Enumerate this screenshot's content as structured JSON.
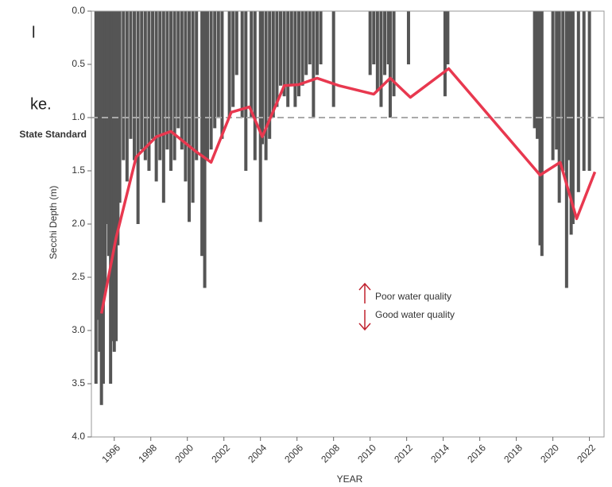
{
  "fragments": [
    "l",
    "ke."
  ],
  "chart_data": {
    "type": "bar",
    "y_axis_label": "Secchi Depth (m)",
    "x_axis_label": "YEAR",
    "y_inverted": true,
    "xlim": [
      1994.75,
      2022.8
    ],
    "ylim": [
      0,
      4
    ],
    "xticks": [
      1996,
      1998,
      2000,
      2002,
      2004,
      2006,
      2008,
      2010,
      2012,
      2014,
      2016,
      2018,
      2020,
      2022
    ],
    "yticks": [
      {
        "value": 0,
        "label": "0.0"
      },
      {
        "value": 0.5,
        "label": "0.5"
      },
      {
        "value": 1,
        "label": "1.0"
      },
      {
        "value": 1.5,
        "label": "1.5"
      },
      {
        "value": 2,
        "label": "2.0"
      },
      {
        "value": 2.5,
        "label": "2.5"
      },
      {
        "value": 3,
        "label": "3.0"
      },
      {
        "value": 3.5,
        "label": "3.5"
      },
      {
        "value": 4,
        "label": "4.0"
      }
    ],
    "color": "#555555",
    "x": [
      1995.0,
      1995.1,
      1995.2,
      1995.3,
      1995.4,
      1995.5,
      1995.6,
      1995.7,
      1995.8,
      1995.9,
      1996.0,
      1996.1,
      1996.2,
      1996.3,
      1996.5,
      1996.7,
      1996.9,
      1997.1,
      1997.3,
      1997.5,
      1997.7,
      1997.9,
      1998.1,
      1998.3,
      1998.5,
      1998.7,
      1998.9,
      1999.1,
      1999.3,
      1999.5,
      1999.7,
      1999.9,
      2000.1,
      2000.3,
      2000.5,
      2000.8,
      2000.95,
      2001.1,
      2001.3,
      2001.5,
      2001.7,
      2001.9,
      2002.3,
      2002.5,
      2002.7,
      2003.0,
      2003.2,
      2003.5,
      2003.7,
      2004.0,
      2004.1,
      2004.3,
      2004.5,
      2004.7,
      2004.9,
      2005.1,
      2005.3,
      2005.5,
      2005.7,
      2005.9,
      2006.1,
      2006.3,
      2006.5,
      2006.7,
      2006.9,
      2007.1,
      2007.3,
      2008.0,
      2010.0,
      2010.2,
      2010.4,
      2010.6,
      2010.8,
      2011.0,
      2011.1,
      2011.3,
      2012.1,
      2014.1,
      2014.25,
      2019.0,
      2019.15,
      2019.3,
      2019.4,
      2020.0,
      2020.2,
      2020.35,
      2020.55,
      2020.75,
      2020.9,
      2021.0,
      2021.1,
      2021.4,
      2021.7,
      2022.0
    ],
    "values": [
      3.5,
      2.9,
      3.2,
      3.7,
      3.5,
      2.6,
      2.0,
      2.3,
      3.5,
      3.1,
      3.2,
      3.1,
      2.2,
      1.8,
      1.4,
      1.6,
      1.2,
      1.4,
      2.0,
      1.3,
      1.4,
      1.5,
      1.2,
      1.6,
      1.4,
      1.8,
      1.3,
      1.5,
      1.4,
      1.1,
      1.3,
      1.6,
      1.98,
      1.8,
      1.4,
      2.3,
      2.6,
      1.4,
      1.3,
      1.1,
      1.0,
      1.2,
      1.0,
      0.9,
      0.6,
      1.0,
      1.5,
      1.0,
      1.4,
      1.98,
      1.25,
      1.4,
      1.2,
      1.0,
      0.9,
      0.7,
      0.8,
      0.9,
      0.7,
      0.9,
      0.8,
      0.7,
      0.6,
      0.5,
      1.0,
      0.6,
      0.5,
      0.9,
      0.6,
      0.5,
      0.75,
      0.9,
      0.6,
      0.5,
      1.0,
      0.8,
      0.5,
      0.8,
      0.5,
      1.1,
      1.2,
      2.2,
      2.3,
      1.4,
      1.3,
      1.8,
      1.5,
      2.6,
      1.4,
      2.1,
      2.0,
      1.7,
      1.5,
      1.5
    ],
    "line": {
      "color": "#e8384f",
      "x": [
        1995.3,
        1996.1,
        1997.2,
        1998.3,
        1999.1,
        2000.4,
        2001.3,
        2002.4,
        2003.4,
        2004.1,
        2005.3,
        2006.1,
        2007.1,
        2008.3,
        2010.2,
        2011.1,
        2012.2,
        2014.3,
        2019.3,
        2020.4,
        2021.3,
        2022.3
      ],
      "values": [
        2.84,
        2.13,
        1.37,
        1.18,
        1.13,
        1.31,
        1.42,
        0.95,
        0.9,
        1.18,
        0.7,
        0.69,
        0.63,
        0.7,
        0.78,
        0.63,
        0.81,
        0.54,
        1.54,
        1.42,
        1.95,
        1.51
      ]
    },
    "reference_line": {
      "value": 1,
      "label": "State Standard",
      "color": "#aaaaaa"
    },
    "annotations": [
      "Poor water quality",
      "Good water quality"
    ]
  }
}
